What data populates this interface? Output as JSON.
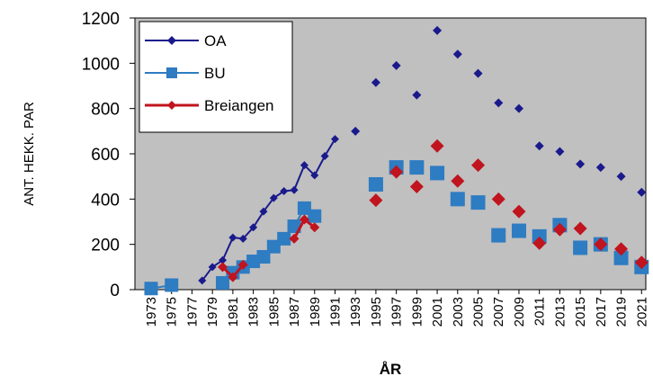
{
  "chart_data": {
    "type": "line",
    "xlabel": "ÅR",
    "ylabel": "ANT. HEKK. PAR",
    "xlim": [
      1973,
      2021
    ],
    "ylim": [
      0,
      1200
    ],
    "yticks": [
      0,
      200,
      400,
      600,
      800,
      1000,
      1200
    ],
    "xticks": [
      1973,
      1975,
      1977,
      1979,
      1981,
      1983,
      1985,
      1987,
      1989,
      1991,
      1993,
      1995,
      1997,
      1999,
      2001,
      2003,
      2005,
      2007,
      2009,
      2011,
      2013,
      2015,
      2017,
      2019,
      2021
    ],
    "grid": false,
    "plot_background": "#c0c0c0",
    "legend_position": "top-left",
    "series": [
      {
        "name": "OA",
        "color": "#1a1a8c",
        "marker": "diamond",
        "segments": [
          [
            [
              1978,
              40
            ],
            [
              1979,
              100
            ],
            [
              1980,
              130
            ],
            [
              1981,
              230
            ],
            [
              1982,
              225
            ],
            [
              1983,
              275
            ],
            [
              1984,
              345
            ],
            [
              1985,
              405
            ],
            [
              1986,
              435
            ],
            [
              1987,
              440
            ],
            [
              1988,
              550
            ],
            [
              1989,
              505
            ],
            [
              1990,
              590
            ],
            [
              1991,
              665
            ]
          ]
        ],
        "points": [
          [
            1993,
            700
          ],
          [
            1995,
            915
          ],
          [
            1997,
            990
          ],
          [
            1999,
            860
          ],
          [
            2001,
            1145
          ],
          [
            2003,
            1040
          ],
          [
            2005,
            955
          ],
          [
            2007,
            825
          ],
          [
            2009,
            800
          ],
          [
            2011,
            635
          ],
          [
            2013,
            610
          ],
          [
            2015,
            555
          ],
          [
            2017,
            540
          ],
          [
            2019,
            500
          ],
          [
            2021,
            430
          ]
        ]
      },
      {
        "name": "BU",
        "color": "#2e7cc2",
        "marker": "square",
        "segments": [
          [
            [
              1973,
              5
            ],
            [
              1975,
              20
            ]
          ],
          [
            [
              1980,
              30
            ],
            [
              1981,
              75
            ],
            [
              1982,
              100
            ],
            [
              1983,
              125
            ],
            [
              1984,
              145
            ],
            [
              1985,
              190
            ],
            [
              1986,
              225
            ],
            [
              1987,
              280
            ],
            [
              1988,
              360
            ],
            [
              1989,
              325
            ]
          ]
        ],
        "points": [
          [
            1995,
            465
          ],
          [
            1997,
            540
          ],
          [
            1999,
            540
          ],
          [
            2001,
            515
          ],
          [
            2003,
            400
          ],
          [
            2005,
            385
          ],
          [
            2007,
            240
          ],
          [
            2009,
            260
          ],
          [
            2011,
            235
          ],
          [
            2013,
            285
          ],
          [
            2015,
            185
          ],
          [
            2017,
            200
          ],
          [
            2019,
            140
          ],
          [
            2021,
            100
          ]
        ]
      },
      {
        "name": "Breiangen",
        "color": "#c0141e",
        "marker": "diamond",
        "segments": [
          [
            [
              1980,
              100
            ],
            [
              1981,
              55
            ],
            [
              1982,
              110
            ]
          ],
          [
            [
              1987,
              225
            ],
            [
              1988,
              310
            ],
            [
              1989,
              275
            ]
          ]
        ],
        "points": [
          [
            1995,
            395
          ],
          [
            1997,
            520
          ],
          [
            1999,
            455
          ],
          [
            2001,
            635
          ],
          [
            2003,
            480
          ],
          [
            2005,
            550
          ],
          [
            2007,
            400
          ],
          [
            2009,
            345
          ],
          [
            2011,
            205
          ],
          [
            2013,
            265
          ],
          [
            2015,
            270
          ],
          [
            2017,
            200
          ],
          [
            2019,
            180
          ],
          [
            2021,
            120
          ]
        ]
      }
    ]
  }
}
